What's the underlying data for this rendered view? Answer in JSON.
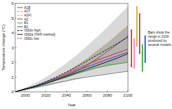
{
  "chart_data": {
    "type": "line",
    "x_label": "Year",
    "y_label": "Temperature change (°C)",
    "x": [
      1990,
      2000,
      2010,
      2020,
      2030,
      2040,
      2050,
      2060,
      2070,
      2080,
      2090,
      2100
    ],
    "xlim": [
      1990,
      2100
    ],
    "xticks": [
      2000,
      2020,
      2040,
      2060,
      2080,
      2100
    ],
    "ylim": [
      0,
      6
    ],
    "yticks": [
      0,
      1,
      2,
      3,
      4,
      5,
      6
    ],
    "grid": false,
    "legend": "upper left",
    "annotation": "Bars show the range in 2100 produced by several models",
    "bands": [
      {
        "color": "#d9d9d9",
        "low": [
          0,
          0.1,
          0.25,
          0.4,
          0.55,
          0.7,
          0.85,
          1.0,
          1.1,
          1.2,
          1.3,
          1.4
        ],
        "high": [
          0,
          0.3,
          0.6,
          1.0,
          1.45,
          1.95,
          2.5,
          3.1,
          3.75,
          4.4,
          5.1,
          5.8
        ]
      },
      {
        "color": "#b3b3b3",
        "low": [
          0,
          0.15,
          0.35,
          0.55,
          0.75,
          0.95,
          1.2,
          1.4,
          1.6,
          1.75,
          1.9,
          2.0
        ],
        "high": [
          0,
          0.25,
          0.45,
          0.7,
          1.0,
          1.35,
          1.8,
          2.25,
          2.8,
          3.3,
          3.9,
          4.5
        ]
      }
    ],
    "series": [
      {
        "name": "A1B",
        "color": "#d7191c",
        "line_style": "solid",
        "values": [
          0,
          0.2,
          0.4,
          0.65,
          0.95,
          1.25,
          1.55,
          1.85,
          2.15,
          2.4,
          2.65,
          2.9
        ],
        "range": [
          1.7,
          4.2
        ]
      },
      {
        "name": "A1T",
        "color": "#e377c2",
        "line_style": "dashdot",
        "values": [
          0,
          0.2,
          0.4,
          0.65,
          0.95,
          1.3,
          1.6,
          1.85,
          2.05,
          2.25,
          2.4,
          2.5
        ],
        "range": [
          1.6,
          3.6
        ]
      },
      {
        "name": "A1FI",
        "color": "#d4a017",
        "line_style": "dashed",
        "values": [
          0,
          0.2,
          0.4,
          0.65,
          0.9,
          1.3,
          1.75,
          2.2,
          2.75,
          3.3,
          3.9,
          4.5
        ],
        "range": [
          3.1,
          5.8
        ]
      },
      {
        "name": "A2",
        "color": "#8c3b1a",
        "line_style": "solid",
        "values": [
          0,
          0.2,
          0.38,
          0.6,
          0.85,
          1.1,
          1.4,
          1.8,
          2.25,
          2.75,
          3.25,
          3.8
        ],
        "range": [
          2.6,
          5.3
        ]
      },
      {
        "name": "B1",
        "color": "#2ca02c",
        "line_style": "solid",
        "values": [
          0,
          0.2,
          0.38,
          0.6,
          0.8,
          1.0,
          1.25,
          1.45,
          1.65,
          1.8,
          1.9,
          2.0
        ],
        "range": [
          1.4,
          3.2
        ]
      },
      {
        "name": "B2",
        "color": "#1f3fbf",
        "line_style": "solid",
        "values": [
          0,
          0.2,
          0.4,
          0.65,
          0.9,
          1.15,
          1.45,
          1.7,
          1.95,
          2.2,
          2.45,
          2.7
        ],
        "range": [
          2.0,
          3.8
        ]
      },
      {
        "name": "IS92e high",
        "color": "#000000",
        "line_style": "dashed",
        "values": [
          0,
          0.2,
          0.4,
          0.7,
          1.0,
          1.35,
          1.7,
          2.1,
          2.5,
          2.9,
          3.3,
          3.7
        ]
      },
      {
        "name": "IS92a (TAR method)",
        "color": "#000000",
        "line_style": "solid",
        "values": [
          0,
          0.2,
          0.35,
          0.55,
          0.8,
          1.05,
          1.3,
          1.55,
          1.8,
          2.05,
          2.3,
          2.6
        ]
      },
      {
        "name": "IS92c low",
        "color": "#000000",
        "line_style": "dotted",
        "values": [
          0,
          0.15,
          0.3,
          0.45,
          0.6,
          0.75,
          0.9,
          1.0,
          1.1,
          1.2,
          1.3,
          1.4
        ]
      }
    ]
  }
}
